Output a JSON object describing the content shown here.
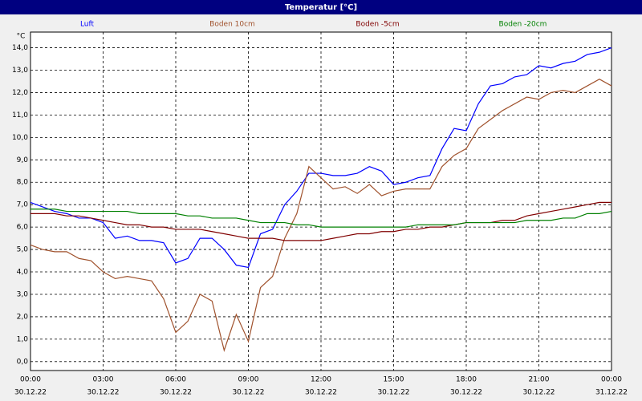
{
  "chart_data": {
    "type": "line",
    "title": "Temperatur [°C]",
    "y_unit": "°C",
    "x": [
      0,
      0.5,
      1,
      1.5,
      2,
      2.5,
      3,
      3.5,
      4,
      4.5,
      5,
      5.5,
      6,
      6.5,
      7,
      7.5,
      8,
      8.5,
      9,
      9.5,
      10,
      10.5,
      11,
      11.5,
      12,
      12.5,
      13,
      13.5,
      14,
      14.5,
      15,
      15.5,
      16,
      16.5,
      17,
      17.5,
      18,
      18.5,
      19,
      19.5,
      20,
      20.5,
      21,
      21.5,
      22,
      22.5,
      23,
      23.5,
      24
    ],
    "series": [
      {
        "name": "Luft",
        "color": "#0000ff",
        "values": [
          7.1,
          6.9,
          6.7,
          6.6,
          6.4,
          6.4,
          6.2,
          5.5,
          5.6,
          5.4,
          5.4,
          5.3,
          4.4,
          4.6,
          5.5,
          5.5,
          5.0,
          4.3,
          4.2,
          5.7,
          5.9,
          7.0,
          7.6,
          8.4,
          8.4,
          8.3,
          8.3,
          8.4,
          8.7,
          8.5,
          7.9,
          8.0,
          8.2,
          8.3,
          9.5,
          10.4,
          10.3,
          11.5,
          12.3,
          12.4,
          12.7,
          12.8,
          13.2,
          13.1,
          13.3,
          13.4,
          13.7,
          13.8,
          14.0
        ]
      },
      {
        "name": "Boden 10cm",
        "color": "#a0522d",
        "values": [
          5.2,
          5.0,
          4.9,
          4.9,
          4.6,
          4.5,
          4.0,
          3.7,
          3.8,
          3.7,
          3.6,
          2.8,
          1.3,
          1.8,
          3.0,
          2.7,
          0.5,
          2.1,
          0.9,
          3.3,
          3.8,
          5.5,
          6.6,
          8.7,
          8.2,
          7.7,
          7.8,
          7.5,
          7.9,
          7.4,
          7.6,
          7.7,
          7.7,
          7.7,
          8.7,
          9.2,
          9.5,
          10.4,
          10.8,
          11.2,
          11.5,
          11.8,
          11.7,
          12.0,
          12.1,
          12.0,
          12.3,
          12.6,
          12.3
        ]
      },
      {
        "name": "Boden -5cm",
        "color": "#800000",
        "values": [
          6.6,
          6.6,
          6.6,
          6.5,
          6.5,
          6.4,
          6.3,
          6.2,
          6.1,
          6.1,
          6.0,
          6.0,
          5.9,
          5.9,
          5.9,
          5.8,
          5.7,
          5.6,
          5.5,
          5.5,
          5.5,
          5.4,
          5.4,
          5.4,
          5.4,
          5.5,
          5.6,
          5.7,
          5.7,
          5.8,
          5.8,
          5.9,
          5.9,
          6.0,
          6.0,
          6.1,
          6.2,
          6.2,
          6.2,
          6.3,
          6.3,
          6.5,
          6.6,
          6.7,
          6.8,
          6.9,
          7.0,
          7.1,
          7.1
        ]
      },
      {
        "name": "Boden -20cm",
        "color": "#008000",
        "values": [
          6.8,
          6.8,
          6.8,
          6.7,
          6.7,
          6.7,
          6.7,
          6.7,
          6.7,
          6.6,
          6.6,
          6.6,
          6.6,
          6.5,
          6.5,
          6.4,
          6.4,
          6.4,
          6.3,
          6.2,
          6.2,
          6.2,
          6.1,
          6.1,
          6.0,
          6.0,
          6.0,
          6.0,
          6.0,
          6.0,
          6.0,
          6.0,
          6.1,
          6.1,
          6.1,
          6.1,
          6.2,
          6.2,
          6.2,
          6.2,
          6.2,
          6.3,
          6.3,
          6.3,
          6.4,
          6.4,
          6.6,
          6.6,
          6.7
        ]
      }
    ],
    "xlim": [
      0,
      24
    ],
    "xticks": [
      {
        "value": 0,
        "label": "00:00",
        "date": "30.12.22"
      },
      {
        "value": 3,
        "label": "03:00",
        "date": "30.12.22"
      },
      {
        "value": 6,
        "label": "06:00",
        "date": "30.12.22"
      },
      {
        "value": 9,
        "label": "09:00",
        "date": "30.12.22"
      },
      {
        "value": 12,
        "label": "12:00",
        "date": "30.12.22"
      },
      {
        "value": 15,
        "label": "15:00",
        "date": "30.12.22"
      },
      {
        "value": 18,
        "label": "18:00",
        "date": "30.12.22"
      },
      {
        "value": 21,
        "label": "21:00",
        "date": "30.12.22"
      },
      {
        "value": 24,
        "label": "00:00",
        "date": "31.12.22"
      }
    ],
    "ylim": [
      -0.4,
      14.7
    ],
    "yticks": [
      {
        "value": 0,
        "label": "0,0"
      },
      {
        "value": 1,
        "label": "1,0"
      },
      {
        "value": 2,
        "label": "2,0"
      },
      {
        "value": 3,
        "label": "3,0"
      },
      {
        "value": 4,
        "label": "4,0"
      },
      {
        "value": 5,
        "label": "5,0"
      },
      {
        "value": 6,
        "label": "6,0"
      },
      {
        "value": 7,
        "label": "7,0"
      },
      {
        "value": 8,
        "label": "8,0"
      },
      {
        "value": 9,
        "label": "9,0"
      },
      {
        "value": 10,
        "label": "10,0"
      },
      {
        "value": 11,
        "label": "11,0"
      },
      {
        "value": 12,
        "label": "12,0"
      },
      {
        "value": 13,
        "label": "13,0"
      },
      {
        "value": 14,
        "label": "14,0"
      }
    ],
    "grid": true
  }
}
